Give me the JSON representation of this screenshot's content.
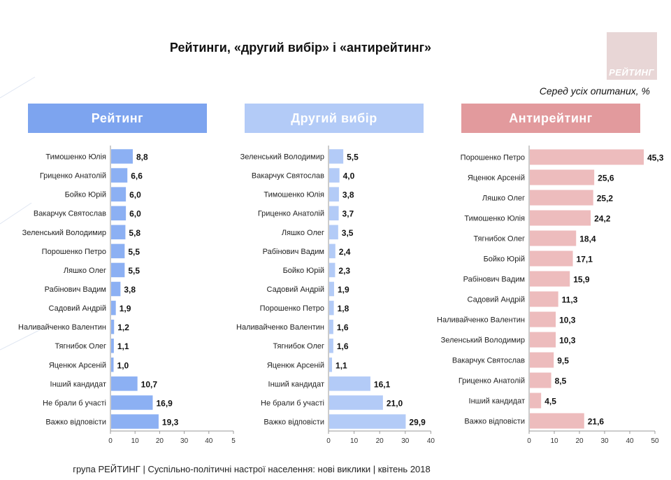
{
  "title": "Рейтинги, «другий вибір» і «антирейтинг»",
  "logo_text": "РЕЙТИНГ",
  "subtitle": "Серед усіх опитаних, %",
  "footer": "група РЕЙТИНГ | Суспільно-політичні настрої населення: нові виклики | квітень 2018",
  "colors": {
    "rating_header": "#7da4ef",
    "rating_bar": "#8cb0f3",
    "second_header": "#b3cbf7",
    "second_bar": "#b3cbf7",
    "anti_header": "#e29a9d",
    "anti_bar": "#edbcbd"
  },
  "chart_data": [
    {
      "type": "bar",
      "orientation": "horizontal",
      "title": "Рейтинг",
      "categories": [
        "Тимошенко Юлія",
        "Гриценко Анатолій",
        "Бойко Юрій",
        "Вакарчук Святослав",
        "Зеленський Володимир",
        "Порошенко Петро",
        "Ляшко Олег",
        "Рабінович Вадим",
        "Садовий Андрій",
        "Наливайченко Валентин",
        "Тягнибок Олег",
        "Яценюк Арсеній",
        "Інший кандидат",
        "Не брали б участі",
        "Важко відповісти"
      ],
      "values": [
        8.8,
        6.6,
        6.0,
        6.0,
        5.8,
        5.5,
        5.5,
        3.8,
        1.9,
        1.2,
        1.1,
        1.0,
        10.7,
        16.9,
        19.3
      ],
      "labels": [
        "8,8",
        "6,6",
        "6,0",
        "6,0",
        "5,8",
        "5,5",
        "5,5",
        "3,8",
        "1,9",
        "1,2",
        "1,1",
        "1,0",
        "10,7",
        "16,9",
        "19,3"
      ],
      "xlim": [
        0,
        50
      ],
      "ticks": [
        "0",
        "10",
        "20",
        "30",
        "40",
        "5"
      ]
    },
    {
      "type": "bar",
      "orientation": "horizontal",
      "title": "Другий вибір",
      "categories": [
        "Зеленський Володимир",
        "Вакарчук Святослав",
        "Тимошенко Юлія",
        "Гриценко Анатолій",
        "Ляшко Олег",
        "Рабінович Вадим",
        "Бойко Юрій",
        "Садовий Андрій",
        "Порошенко Петро",
        "Наливайченко Валентин",
        "Тягнибок Олег",
        "Яценюк Арсеній",
        "Інший кандидат",
        "Не брали б участі",
        "Важко відповісти"
      ],
      "values": [
        5.5,
        4.0,
        3.8,
        3.7,
        3.5,
        2.4,
        2.3,
        1.9,
        1.8,
        1.6,
        1.6,
        1.1,
        16.1,
        21.0,
        29.9
      ],
      "labels": [
        "5,5",
        "4,0",
        "3,8",
        "3,7",
        "3,5",
        "2,4",
        "2,3",
        "1,9",
        "1,8",
        "1,6",
        "1,6",
        "1,1",
        "16,1",
        "21,0",
        "29,9"
      ],
      "xlim": [
        0,
        40
      ],
      "ticks": [
        "0",
        "10",
        "20",
        "30",
        "40"
      ]
    },
    {
      "type": "bar",
      "orientation": "horizontal",
      "title": "Антирейтинг",
      "categories": [
        "Порошенко Петро",
        "Яценюк Арсеній",
        "Ляшко Олег",
        "Тимошенко Юлія",
        "Тягнибок Олег",
        "Бойко Юрій",
        "Рабінович Вадим",
        "Садовий Андрій",
        "Наливайченко Валентин",
        "Зеленський Володимир",
        "Вакарчук Святослав",
        "Гриценко Анатолій",
        "Інший кандидат",
        "Важко відповісти"
      ],
      "values": [
        45.3,
        25.6,
        25.2,
        24.2,
        18.4,
        17.1,
        15.9,
        11.3,
        10.3,
        10.3,
        9.5,
        8.5,
        4.5,
        21.6
      ],
      "labels": [
        "45,3",
        "25,6",
        "25,2",
        "24,2",
        "18,4",
        "17,1",
        "15,9",
        "11,3",
        "10,3",
        "10,3",
        "9,5",
        "8,5",
        "4,5",
        "21,6"
      ],
      "xlim": [
        0,
        50
      ],
      "ticks": [
        "0",
        "10",
        "20",
        "30",
        "40",
        "50"
      ]
    }
  ]
}
